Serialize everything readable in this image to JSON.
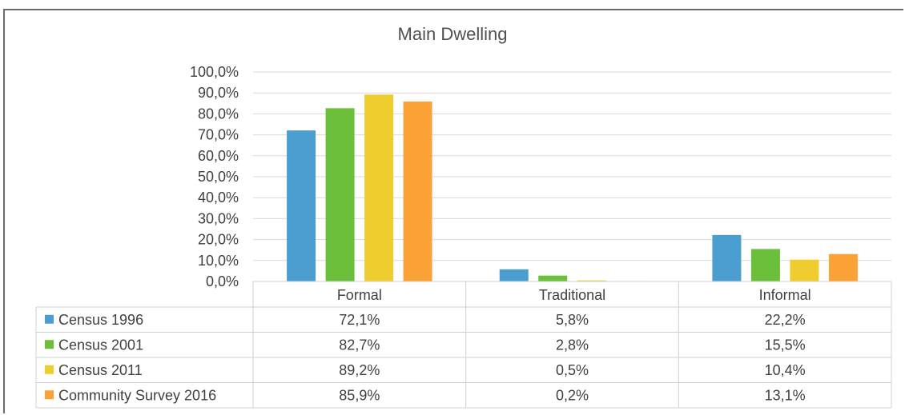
{
  "chart_data": {
    "type": "bar",
    "title": "Main Dwelling",
    "categories": [
      "Formal",
      "Traditional",
      "Informal"
    ],
    "series": [
      {
        "name": "Census 1996",
        "color": "#4a9ed0",
        "values": [
          72.1,
          5.8,
          22.2
        ],
        "labels": [
          "72,1%",
          "5,8%",
          "22,2%"
        ]
      },
      {
        "name": "Census 2001",
        "color": "#6cbf3a",
        "values": [
          82.7,
          2.8,
          15.5
        ],
        "labels": [
          "82,7%",
          "2,8%",
          "15,5%"
        ]
      },
      {
        "name": "Census 2011",
        "color": "#f0cd2e",
        "values": [
          89.2,
          0.5,
          10.4
        ],
        "labels": [
          "89,2%",
          "0,5%",
          "10,4%"
        ]
      },
      {
        "name": "Community Survey 2016",
        "color": "#fba236",
        "values": [
          85.9,
          0.2,
          13.1
        ],
        "labels": [
          "85,9%",
          "0,2%",
          "13,1%"
        ]
      }
    ],
    "ylim": [
      0,
      100
    ],
    "yticks": [
      "0,0%",
      "10,0%",
      "20,0%",
      "30,0%",
      "40,0%",
      "50,0%",
      "60,0%",
      "70,0%",
      "80,0%",
      "90,0%",
      "100,0%"
    ],
    "grid": true,
    "legend_placement": "data-table"
  }
}
